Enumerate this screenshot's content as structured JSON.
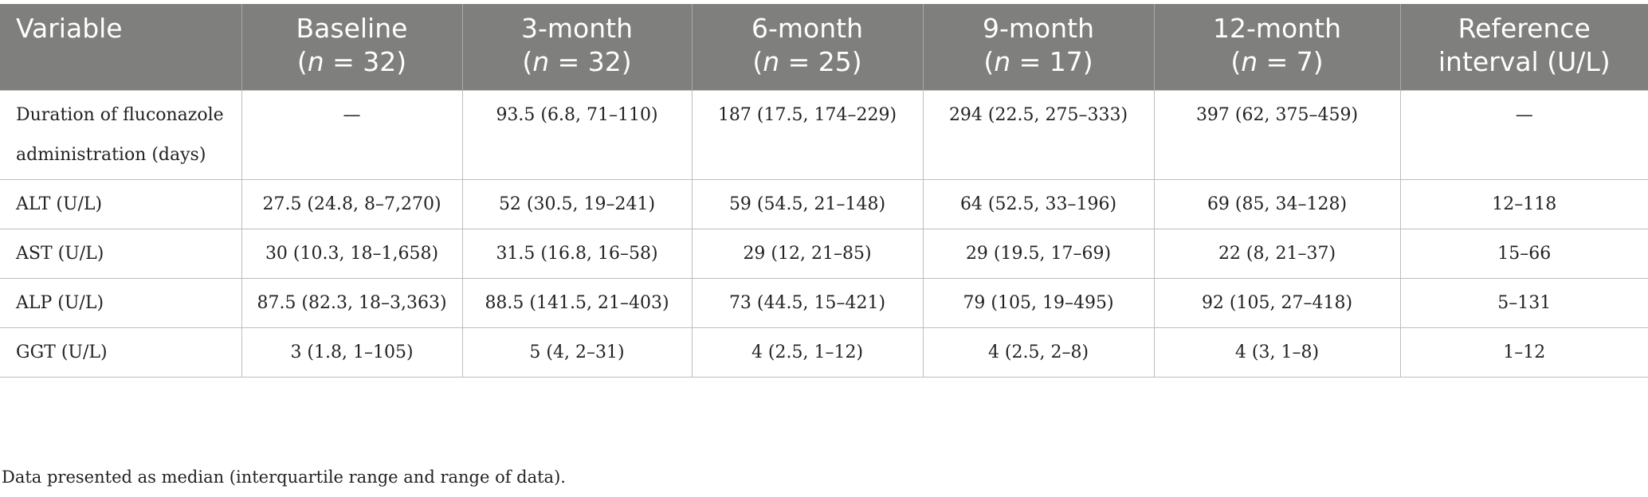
{
  "table": {
    "header": [
      [
        "Variable"
      ],
      [
        "Baseline",
        [
          "(",
          "n",
          " = 32)"
        ]
      ],
      [
        "3-month",
        [
          "(",
          "n",
          " = 32)"
        ]
      ],
      [
        "6-month",
        [
          "(",
          "n",
          " = 25)"
        ]
      ],
      [
        "9-month",
        [
          "(",
          "n",
          " = 17)"
        ]
      ],
      [
        "12-month",
        [
          "(",
          "n",
          " = 7)"
        ]
      ],
      [
        "Reference",
        "interval (U/L)"
      ]
    ],
    "rows": [
      [
        "Duration of fluconazole administration (days)",
        "—",
        "93.5 (6.8, 71–110)",
        "187 (17.5, 174–229)",
        "294 (22.5, 275–333)",
        "397 (62, 375–459)",
        "—"
      ],
      [
        "ALT (U/L)",
        "27.5 (24.8, 8–7,270)",
        "52 (30.5, 19–241)",
        "59 (54.5, 21–148)",
        "64 (52.5, 33–196)",
        "69 (85, 34–128)",
        "12–118"
      ],
      [
        "AST (U/L)",
        "30 (10.3, 18–1,658)",
        "31.5 (16.8, 16–58)",
        "29 (12, 21–85)",
        "29 (19.5, 17–69)",
        "22 (8, 21–37)",
        "15–66"
      ],
      [
        "ALP (U/L)",
        "87.5 (82.3, 18–3,363)",
        "88.5 (141.5, 21–403)",
        "73 (44.5, 15–421)",
        "79 (105, 19–495)",
        "92 (105, 27–418)",
        "5–131"
      ],
      [
        "GGT (U/L)",
        "3 (1.8, 1–105)",
        "5 (4, 2–31)",
        "4 (2.5, 1–12)",
        "4 (2.5, 2–8)",
        "4 (3, 1–8)",
        "1–12"
      ]
    ],
    "footnote": "Data presented as median (interquartile range and range of data)."
  }
}
